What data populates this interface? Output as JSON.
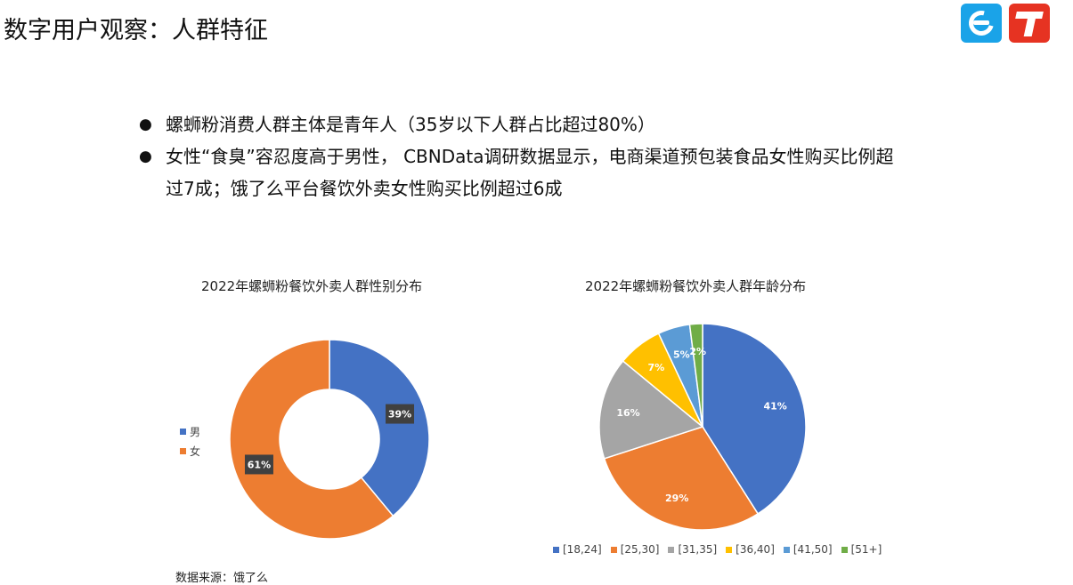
{
  "page": {
    "title": "数字用户观察：人群特征",
    "bullets": [
      "螺蛳粉消费人群主体是青年人（35岁以下人群占比超过80%）",
      "女性“食臭”容忍度高于男性， CBNData调研数据显示，电商渠道预包装食品女性购买比例超过7成；饿了么平台餐饮外卖女性购买比例超过6成"
    ],
    "source": "数据来源：饿了么",
    "logos": [
      "ele-icon",
      "tmall-icon"
    ]
  },
  "chart_data": [
    {
      "type": "pie",
      "variant": "donut",
      "title": "2022年螺蛳粉餐饮外卖人群性别分布",
      "categories": [
        "男",
        "女"
      ],
      "values": [
        39,
        61
      ],
      "labels": [
        "39%",
        "61%"
      ],
      "colors": [
        "#4472c4",
        "#ed7d31"
      ],
      "legend": "left"
    },
    {
      "type": "pie",
      "title": "2022年螺蛳粉餐饮外卖人群年龄分布",
      "categories": [
        "[18,24]",
        "[25,30]",
        "[31,35]",
        "[36,40]",
        "[41,50]",
        "[51+]"
      ],
      "values": [
        41,
        29,
        16,
        7,
        5,
        2
      ],
      "labels": [
        "41%",
        "29%",
        "16%",
        "7%",
        "5%",
        "2%"
      ],
      "colors": [
        "#4472c4",
        "#ed7d31",
        "#a5a5a5",
        "#ffc000",
        "#5b9bd5",
        "#70ad47"
      ],
      "legend": "bottom"
    }
  ]
}
